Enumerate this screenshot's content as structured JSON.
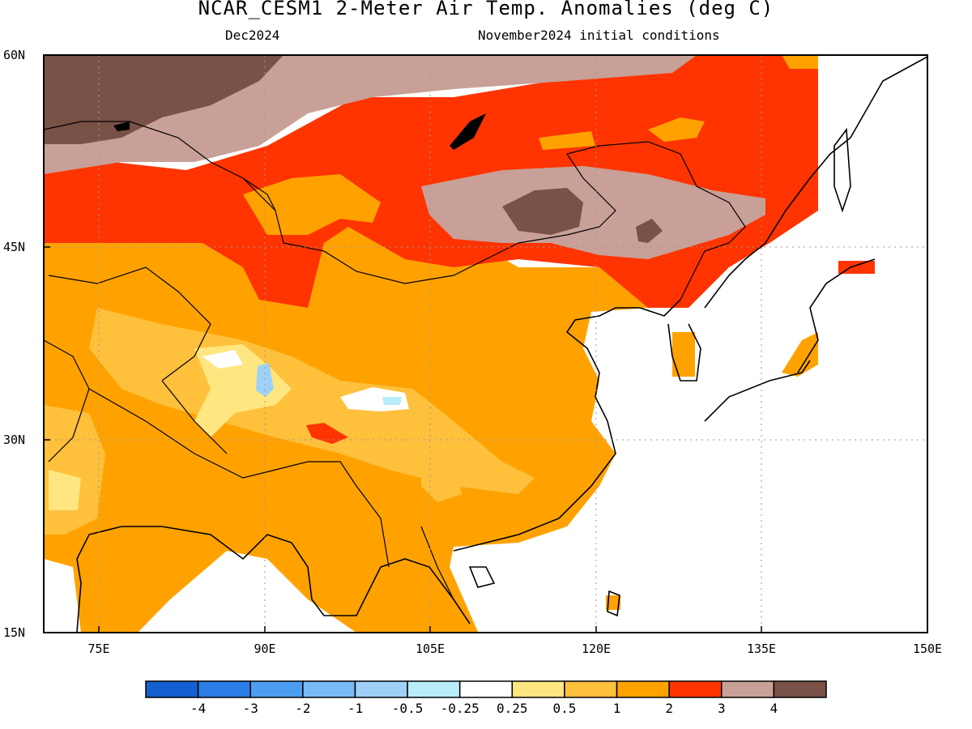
{
  "title": "NCAR_CESM1 2-Meter Air Temp. Anomalies (deg C)",
  "subtitle_left": "Dec2024",
  "subtitle_right": "November2024 initial conditions",
  "map": {
    "lon_range": [
      70,
      150
    ],
    "lat_range": [
      15,
      60
    ],
    "lon_ticks": [
      "75E",
      "90E",
      "105E",
      "120E",
      "135E",
      "150E"
    ],
    "lat_ticks": [
      "60N",
      "45N",
      "30N",
      "15N"
    ],
    "grid": "dotted"
  },
  "colorbar": {
    "labels": [
      "-4",
      "-3",
      "-2",
      "-1",
      "-0.5",
      "-0.25",
      "0.25",
      "0.5",
      "1",
      "2",
      "3",
      "4"
    ],
    "colors": [
      "#1560d0",
      "#2a7ee6",
      "#4c9ef2",
      "#78baf5",
      "#9fd0f8",
      "#b8ecf8",
      "#ffffff",
      "#ffe680",
      "#ffc03c",
      "#ffa200",
      "#ff3400",
      "#c8a097",
      "#7a5147"
    ]
  },
  "colors": {
    "land_outline": "#000000",
    "anomaly_3_4": "#c8a097",
    "anomaly_4_plus": "#7a5147"
  }
}
